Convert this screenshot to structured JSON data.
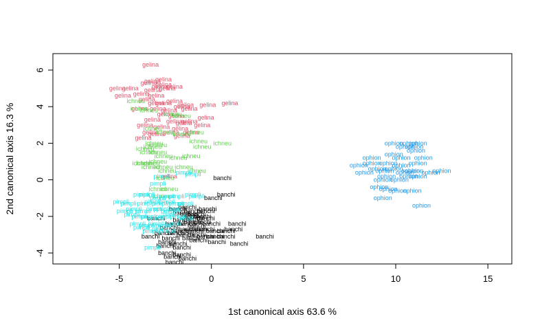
{
  "chart_data": {
    "type": "scatter",
    "title": "",
    "xlabel": "1st canonical axis 63.6 %",
    "ylabel": "2nd canonical axis 16.3 %",
    "xlim": [
      -8.6,
      16.3
    ],
    "ylim": [
      -4.6,
      6.9
    ],
    "xticks": [
      -5,
      0,
      5,
      10,
      15
    ],
    "yticks": [
      -4,
      -2,
      0,
      2,
      4,
      6
    ],
    "grid": false,
    "legend": "none",
    "series": [
      {
        "name": "gelina",
        "color": "#DF536B",
        "points": [
          [
            -3.3,
            6.3
          ],
          [
            -3.2,
            5.4
          ],
          [
            -2.6,
            5.5
          ],
          [
            -3.4,
            5.3
          ],
          [
            -2.8,
            5.1
          ],
          [
            -2.6,
            5.2
          ],
          [
            -2.4,
            5.0
          ],
          [
            -2.0,
            5.1
          ],
          [
            -5.1,
            5.0
          ],
          [
            -4.8,
            4.6
          ],
          [
            -4.4,
            5.0
          ],
          [
            -3.2,
            4.9
          ],
          [
            -3.8,
            4.7
          ],
          [
            -3.0,
            4.6
          ],
          [
            -3.5,
            4.4
          ],
          [
            -2.6,
            4.2
          ],
          [
            -3.0,
            4.2
          ],
          [
            -2.0,
            4.3
          ],
          [
            -1.6,
            4.0
          ],
          [
            -1.4,
            4.1
          ],
          [
            -3.9,
            3.9
          ],
          [
            -2.9,
            3.9
          ],
          [
            -2.3,
            3.8
          ],
          [
            -1.2,
            3.9
          ],
          [
            -0.2,
            4.1
          ],
          [
            1.0,
            4.2
          ],
          [
            -2.5,
            3.6
          ],
          [
            -1.9,
            3.5
          ],
          [
            -3.2,
            3.3
          ],
          [
            -2.0,
            3.2
          ],
          [
            -1.5,
            3.1
          ],
          [
            -1.2,
            3.2
          ],
          [
            -0.3,
            3.4
          ],
          [
            -3.6,
            3.0
          ],
          [
            -2.7,
            2.9
          ],
          [
            -1.7,
            2.8
          ],
          [
            -0.5,
            3.0
          ],
          [
            -3.3,
            2.6
          ],
          [
            -2.2,
            2.6
          ],
          [
            -1.6,
            2.4
          ],
          [
            -1.1,
            2.6
          ],
          [
            -3.7,
            2.3
          ],
          [
            -3.0,
            2.5
          ],
          [
            -2.3,
            0.2
          ]
        ]
      },
      {
        "name": "ichneu",
        "color": "#61D04F",
        "points": [
          [
            -4.1,
            4.3
          ],
          [
            -3.9,
            3.9
          ],
          [
            -3.4,
            3.8
          ],
          [
            -2.1,
            3.6
          ],
          [
            -1.6,
            3.5
          ],
          [
            -3.2,
            2.8
          ],
          [
            -2.5,
            2.6
          ],
          [
            -1.6,
            2.5
          ],
          [
            -0.9,
            2.6
          ],
          [
            -0.7,
            2.1
          ],
          [
            0.6,
            2.0
          ],
          [
            -0.5,
            1.8
          ],
          [
            -3.1,
            2.0
          ],
          [
            -2.9,
            1.9
          ],
          [
            -3.2,
            1.8
          ],
          [
            -3.6,
            1.7
          ],
          [
            -2.9,
            1.5
          ],
          [
            -3.4,
            1.5
          ],
          [
            -2.6,
            1.3
          ],
          [
            -1.8,
            1.2
          ],
          [
            -1.1,
            1.3
          ],
          [
            -0.8,
            0.5
          ],
          [
            -2.9,
            1.0
          ],
          [
            -3.3,
            0.9
          ],
          [
            -3.6,
            0.9
          ],
          [
            -3.3,
            0.7
          ],
          [
            -2.6,
            0.7
          ],
          [
            -1.5,
            0.7
          ],
          [
            -3.8,
            0.9
          ],
          [
            -2.4,
            0.5
          ],
          [
            -2.5,
            0.1
          ],
          [
            -2.3,
            -0.5
          ],
          [
            -2.9,
            -0.5
          ],
          [
            -2.7,
            -0.9
          ]
        ]
      },
      {
        "name": "banchi",
        "color": "#000000",
        "points": [
          [
            0.6,
            0.1
          ],
          [
            0.8,
            -0.8
          ],
          [
            0.1,
            -1.0
          ],
          [
            -1.8,
            -1.6
          ],
          [
            -1.3,
            -1.5
          ],
          [
            -1.0,
            -1.7
          ],
          [
            -1.6,
            -1.8
          ],
          [
            -1.2,
            -1.9
          ],
          [
            -0.8,
            -1.9
          ],
          [
            -0.3,
            -1.7
          ],
          [
            -0.2,
            -1.6
          ],
          [
            -1.2,
            -2.0
          ],
          [
            -0.5,
            -2.0
          ],
          [
            -0.9,
            -2.1
          ],
          [
            -0.3,
            -2.1
          ],
          [
            -1.6,
            -2.2
          ],
          [
            -3.0,
            -2.1
          ],
          [
            -1.0,
            -2.3
          ],
          [
            -0.5,
            -2.3
          ],
          [
            0.0,
            -2.4
          ],
          [
            -1.3,
            -2.4
          ],
          [
            -2.0,
            -2.4
          ],
          [
            -2.3,
            -2.6
          ],
          [
            -0.7,
            -2.7
          ],
          [
            -1.3,
            -2.7
          ],
          [
            -0.9,
            -2.8
          ],
          [
            -1.7,
            -2.8
          ],
          [
            0.2,
            -2.8
          ],
          [
            0.8,
            -2.8
          ],
          [
            1.2,
            -2.7
          ],
          [
            1.4,
            -2.4
          ],
          [
            -0.8,
            -2.5
          ],
          [
            -0.3,
            -2.7
          ],
          [
            -2.6,
            -2.9
          ],
          [
            -1.9,
            -2.9
          ],
          [
            -1.4,
            -3.0
          ],
          [
            -0.8,
            -3.0
          ],
          [
            -0.3,
            -3.1
          ],
          [
            0.2,
            -3.1
          ],
          [
            0.8,
            -3.1
          ],
          [
            2.9,
            -3.1
          ],
          [
            -3.3,
            -3.1
          ],
          [
            -2.2,
            -3.2
          ],
          [
            -1.1,
            -3.2
          ],
          [
            -0.7,
            -3.3
          ],
          [
            0.3,
            -3.4
          ],
          [
            1.5,
            -3.5
          ],
          [
            -2.4,
            -3.4
          ],
          [
            -1.8,
            -3.5
          ],
          [
            -2.5,
            -3.6
          ],
          [
            -1.6,
            -3.7
          ],
          [
            -2.4,
            -4.0
          ],
          [
            -1.6,
            -4.1
          ],
          [
            -2.1,
            -4.2
          ],
          [
            -1.3,
            -4.3
          ],
          [
            -2.0,
            -4.5
          ]
        ]
      },
      {
        "name": "ophion",
        "color": "#2297E6",
        "points": [
          [
            10.7,
            2.0
          ],
          [
            11.2,
            2.0
          ],
          [
            11.0,
            1.8
          ],
          [
            10.5,
            1.8
          ],
          [
            9.9,
            2.0
          ],
          [
            11.1,
            1.6
          ],
          [
            9.9,
            1.4
          ],
          [
            8.7,
            1.2
          ],
          [
            10.3,
            1.2
          ],
          [
            11.5,
            1.2
          ],
          [
            9.6,
            0.9
          ],
          [
            11.2,
            0.9
          ],
          [
            8.0,
            0.8
          ],
          [
            8.7,
            0.9
          ],
          [
            9.0,
            0.6
          ],
          [
            10.3,
            0.8
          ],
          [
            9.9,
            0.6
          ],
          [
            10.8,
            0.5
          ],
          [
            12.5,
            0.5
          ],
          [
            11.0,
            0.5
          ],
          [
            8.3,
            0.4
          ],
          [
            9.4,
            0.5
          ],
          [
            11.9,
            0.4
          ],
          [
            10.5,
            0.4
          ],
          [
            9.5,
            0.2
          ],
          [
            10.7,
            0.2
          ],
          [
            11.2,
            0.2
          ],
          [
            9.3,
            0.0
          ],
          [
            10.2,
            0.0
          ],
          [
            9.1,
            -0.4
          ],
          [
            9.6,
            -0.5
          ],
          [
            10.1,
            -0.6
          ],
          [
            10.9,
            -0.6
          ],
          [
            9.3,
            -1.0
          ],
          [
            11.4,
            -1.4
          ]
        ]
      },
      {
        "name": "pimpli",
        "color": "#28E2E5",
        "points": [
          [
            -1.0,
            0.3
          ],
          [
            -1.5,
            0.4
          ],
          [
            -2.7,
            0.2
          ],
          [
            -2.9,
            -0.2
          ],
          [
            -3.8,
            -0.8
          ],
          [
            -3.5,
            -0.8
          ],
          [
            -2.9,
            -1.0
          ],
          [
            -2.4,
            -0.9
          ],
          [
            -1.9,
            -0.9
          ],
          [
            -1.0,
            -0.8
          ],
          [
            -0.8,
            -0.9
          ],
          [
            -4.9,
            -1.2
          ],
          [
            -4.5,
            -1.3
          ],
          [
            -3.6,
            -1.3
          ],
          [
            -3.2,
            -1.2
          ],
          [
            -2.8,
            -1.3
          ],
          [
            -2.4,
            -1.2
          ],
          [
            -1.9,
            -1.3
          ],
          [
            -1.4,
            -1.3
          ],
          [
            -4.7,
            -1.7
          ],
          [
            -4.2,
            -1.6
          ],
          [
            -3.7,
            -1.7
          ],
          [
            -3.1,
            -1.6
          ],
          [
            -2.7,
            -1.6
          ],
          [
            -2.3,
            -1.7
          ],
          [
            -1.9,
            -1.6
          ],
          [
            -4.3,
            -1.9
          ],
          [
            -3.9,
            -2.0
          ],
          [
            -3.4,
            -2.0
          ],
          [
            -3.0,
            -2.1
          ],
          [
            -2.6,
            -2.0
          ],
          [
            -2.2,
            -1.9
          ],
          [
            -1.8,
            -2.0
          ],
          [
            -1.4,
            -2.1
          ],
          [
            -4.0,
            -2.4
          ],
          [
            -3.5,
            -2.5
          ],
          [
            -3.0,
            -2.4
          ],
          [
            -2.6,
            -2.5
          ],
          [
            -2.1,
            -2.4
          ],
          [
            -3.8,
            -2.6
          ],
          [
            -3.3,
            -2.8
          ],
          [
            -2.8,
            -2.7
          ],
          [
            -2.4,
            -2.8
          ],
          [
            -3.2,
            -3.7
          ]
        ]
      }
    ]
  }
}
